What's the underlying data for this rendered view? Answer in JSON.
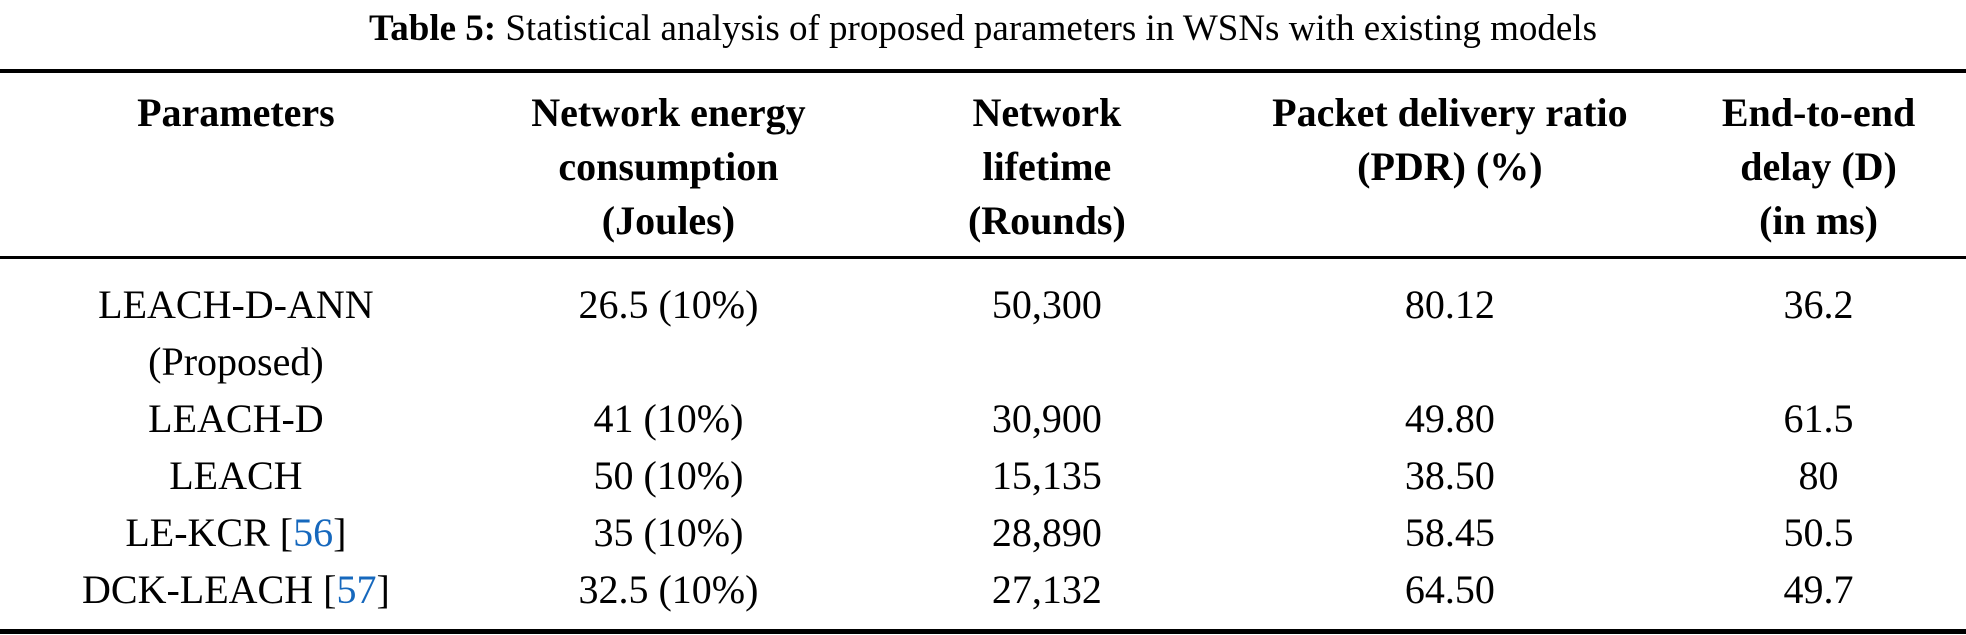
{
  "caption": {
    "label": "Table 5:",
    "text": " Statistical analysis of proposed parameters in WSNs with existing models"
  },
  "table": {
    "headers": {
      "parameters": "Parameters",
      "energy": "Network energy\nconsumption\n(Joules)",
      "lifetime": "Network\nlifetime\n(Rounds)",
      "pdr": "Packet delivery ratio\n(PDR) (%)",
      "delay": "End-to-end\ndelay (D)\n(in ms)"
    },
    "rows": [
      {
        "param": "LEACH-D-ANN\n(Proposed)",
        "energy": "26.5 (10%)",
        "lifetime": "50,300",
        "pdr": "80.12",
        "delay": "36.2"
      },
      {
        "param": "LEACH-D",
        "energy": "41 (10%)",
        "lifetime": "30,900",
        "pdr": "49.80",
        "delay": "61.5"
      },
      {
        "param": "LEACH",
        "energy": "50 (10%)",
        "lifetime": "15,135",
        "pdr": "38.50",
        "delay": "80"
      },
      {
        "param_prefix": "LE-KCR [",
        "citation": "56",
        "param_suffix": "]",
        "energy": "35 (10%)",
        "lifetime": "28,890",
        "pdr": "58.45",
        "delay": "50.5"
      },
      {
        "param_prefix": "DCK-LEACH [",
        "citation": "57",
        "param_suffix": "]",
        "energy": "32.5 (10%)",
        "lifetime": "27,132",
        "pdr": "64.50",
        "delay": "49.7"
      }
    ]
  },
  "colors": {
    "text": "#000000",
    "rule": "#000000",
    "citation_blue": "#1668bd"
  }
}
